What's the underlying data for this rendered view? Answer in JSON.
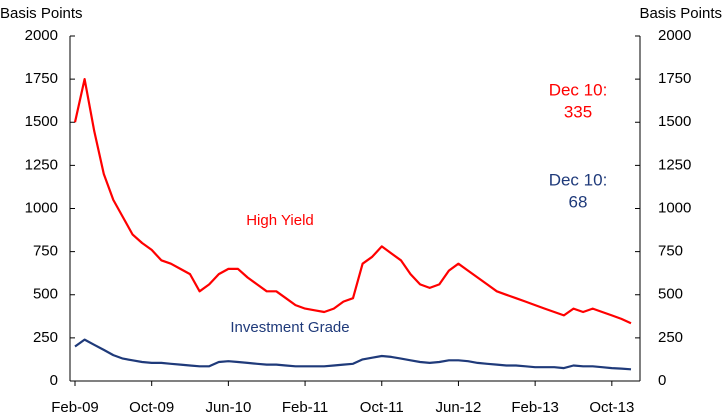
{
  "chart_data": {
    "type": "line",
    "y_label": "Basis Points",
    "y2_label": "Basis Points",
    "x": [
      "Feb-09",
      "Mar-09",
      "Apr-09",
      "May-09",
      "Jun-09",
      "Jul-09",
      "Aug-09",
      "Sep-09",
      "Oct-09",
      "Nov-09",
      "Dec-09",
      "Jan-10",
      "Feb-10",
      "Mar-10",
      "Apr-10",
      "May-10",
      "Jun-10",
      "Jul-10",
      "Aug-10",
      "Sep-10",
      "Oct-10",
      "Nov-10",
      "Dec-10",
      "Jan-11",
      "Feb-11",
      "Mar-11",
      "Apr-11",
      "May-11",
      "Jun-11",
      "Jul-11",
      "Aug-11",
      "Sep-11",
      "Oct-11",
      "Nov-11",
      "Dec-11",
      "Jan-12",
      "Feb-12",
      "Mar-12",
      "Apr-12",
      "May-12",
      "Jun-12",
      "Jul-12",
      "Aug-12",
      "Sep-12",
      "Oct-12",
      "Nov-12",
      "Dec-12",
      "Jan-13",
      "Feb-13",
      "Mar-13",
      "Apr-13",
      "May-13",
      "Jun-13",
      "Jul-13",
      "Aug-13",
      "Sep-13",
      "Oct-13",
      "Nov-13",
      "Dec-13"
    ],
    "xticks": [
      "Feb-09",
      "Oct-09",
      "Jun-10",
      "Feb-11",
      "Oct-11",
      "Jun-12",
      "Feb-13",
      "Oct-13"
    ],
    "series": [
      {
        "name": "High Yield",
        "color": "#ff0000",
        "values": [
          1500,
          1750,
          1450,
          1200,
          1050,
          950,
          850,
          800,
          760,
          700,
          680,
          650,
          620,
          520,
          560,
          620,
          650,
          650,
          600,
          560,
          520,
          520,
          480,
          440,
          420,
          410,
          400,
          420,
          460,
          480,
          680,
          720,
          780,
          740,
          700,
          620,
          560,
          540,
          560,
          640,
          680,
          640,
          600,
          560,
          520,
          500,
          480,
          460,
          440,
          420,
          400,
          380,
          420,
          400,
          420,
          400,
          380,
          360,
          335
        ]
      },
      {
        "name": "Investment Grade",
        "color": "#1f3a7a",
        "values": [
          200,
          240,
          210,
          180,
          150,
          130,
          120,
          110,
          105,
          105,
          100,
          95,
          90,
          85,
          85,
          110,
          115,
          110,
          105,
          100,
          95,
          95,
          90,
          85,
          85,
          85,
          85,
          90,
          95,
          100,
          125,
          135,
          145,
          140,
          130,
          120,
          110,
          105,
          110,
          120,
          120,
          115,
          105,
          100,
          95,
          90,
          90,
          85,
          80,
          80,
          80,
          75,
          90,
          85,
          85,
          80,
          75,
          72,
          68
        ]
      }
    ],
    "ylim": [
      0,
      2000
    ],
    "yticks": [
      0,
      250,
      500,
      750,
      1000,
      1250,
      1500,
      1750,
      2000
    ],
    "y2lim": [
      0,
      2000
    ],
    "y2ticks": [
      0,
      250,
      500,
      750,
      1000,
      1250,
      1500,
      1750,
      2000
    ],
    "annotations": [
      {
        "lines": [
          "Dec 10:",
          "335"
        ],
        "color": "#ff0000"
      },
      {
        "lines": [
          "Dec 10:",
          "68"
        ],
        "color": "#1f3a7a"
      }
    ]
  }
}
